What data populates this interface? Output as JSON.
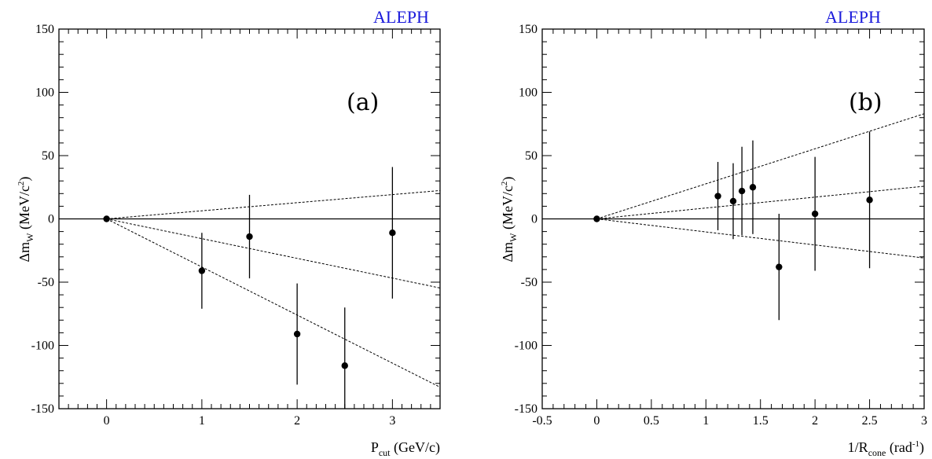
{
  "colors": {
    "brand": "#1a1adb",
    "ink": "#000000"
  },
  "chart_data": [
    {
      "type": "scatter",
      "brand_label": "ALEPH",
      "panel_label": "(a)",
      "ylabel": {
        "main": "Δm",
        "sub": "W",
        "unit_pre": " (MeV/c",
        "unit_sup": "2",
        "unit_post": ")"
      },
      "xlabel": {
        "main": "P",
        "sub": "cut",
        "unit": " (GeV/c)"
      },
      "xlim": [
        -0.5,
        3.5
      ],
      "ylim": [
        -150,
        150
      ],
      "xticks": [
        0,
        1,
        2,
        3
      ],
      "xtick_labels": [
        "0",
        "1",
        "2",
        "3"
      ],
      "yticks": [
        -150,
        -100,
        -50,
        0,
        50,
        100,
        150
      ],
      "ytick_labels": [
        "-150",
        "-100",
        "-50",
        "0",
        "50",
        "100",
        "150"
      ],
      "points": [
        {
          "x": 0,
          "y": 0,
          "err": 0
        },
        {
          "x": 1,
          "y": -41,
          "err": 30
        },
        {
          "x": 1.5,
          "y": -14,
          "err": 33
        },
        {
          "x": 2,
          "y": -91,
          "err": 40
        },
        {
          "x": 2.5,
          "y": -116,
          "err": 46
        },
        {
          "x": 3,
          "y": -11,
          "err": 52
        }
      ],
      "fit_lines": [
        {
          "slope": 6.4,
          "style": "dashed"
        },
        {
          "slope": -15.6,
          "style": "dashed"
        },
        {
          "slope": -38.0,
          "style": "dashed"
        }
      ]
    },
    {
      "type": "scatter",
      "brand_label": "ALEPH",
      "panel_label": "(b)",
      "ylabel": {
        "main": "Δm",
        "sub": "W",
        "unit_pre": " (MeV/c",
        "unit_sup": "2",
        "unit_post": ")"
      },
      "xlabel": {
        "main": "1/R",
        "sub": "cone",
        "unit_pre": " (rad",
        "unit_sup": "-1",
        "unit_post": ")"
      },
      "xlim": [
        -0.5,
        3
      ],
      "ylim": [
        -150,
        150
      ],
      "xticks": [
        -0.5,
        0,
        0.5,
        1,
        1.5,
        2,
        2.5,
        3
      ],
      "xtick_labels": [
        "-0.5",
        "0",
        "0.5",
        "1",
        "1.5",
        "2",
        "2.5",
        "3"
      ],
      "yticks": [
        -150,
        -100,
        -50,
        0,
        50,
        100,
        150
      ],
      "ytick_labels": [
        "-150",
        "-100",
        "-50",
        "0",
        "50",
        "100",
        "150"
      ],
      "points": [
        {
          "x": 0,
          "y": 0,
          "err": 0
        },
        {
          "x": 1.11,
          "y": 18,
          "err": 27
        },
        {
          "x": 1.25,
          "y": 14,
          "err": 30
        },
        {
          "x": 1.33,
          "y": 22,
          "err": 35
        },
        {
          "x": 1.43,
          "y": 25,
          "err": 37
        },
        {
          "x": 1.67,
          "y": -38,
          "err": 42
        },
        {
          "x": 2,
          "y": 4,
          "err": 45
        },
        {
          "x": 2.5,
          "y": 15,
          "err": 54
        }
      ],
      "fit_lines": [
        {
          "slope": 27.7,
          "style": "dashed"
        },
        {
          "slope": 8.6,
          "style": "dashed"
        },
        {
          "slope": -10.3,
          "style": "dashed"
        }
      ]
    }
  ]
}
